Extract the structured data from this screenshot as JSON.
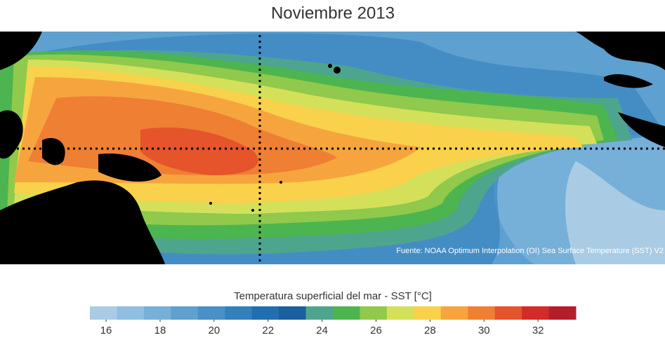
{
  "title": "Noviembre 2013",
  "source": "Fuente: NOAA Optimum Interpolation (OI) Sea Surface Temperature (SST) V2",
  "colorbar": {
    "label": "Temperatura superficial del mar - SST  [°C]",
    "lim": [
      15.4,
      33.4
    ],
    "ticks": [
      16,
      18,
      20,
      22,
      24,
      26,
      28,
      30,
      32
    ],
    "colors": [
      "#a9cce4",
      "#8fbfe0",
      "#76b0d9",
      "#5ea0d0",
      "#4890c7",
      "#3480bd",
      "#216fb0",
      "#1a5f9f",
      "#4ea58d",
      "#4cb54f",
      "#90c94b",
      "#d4e05a",
      "#f9d14b",
      "#f6a53e",
      "#ef7f33",
      "#e5542a",
      "#d42a28",
      "#b51d2a"
    ]
  }
}
